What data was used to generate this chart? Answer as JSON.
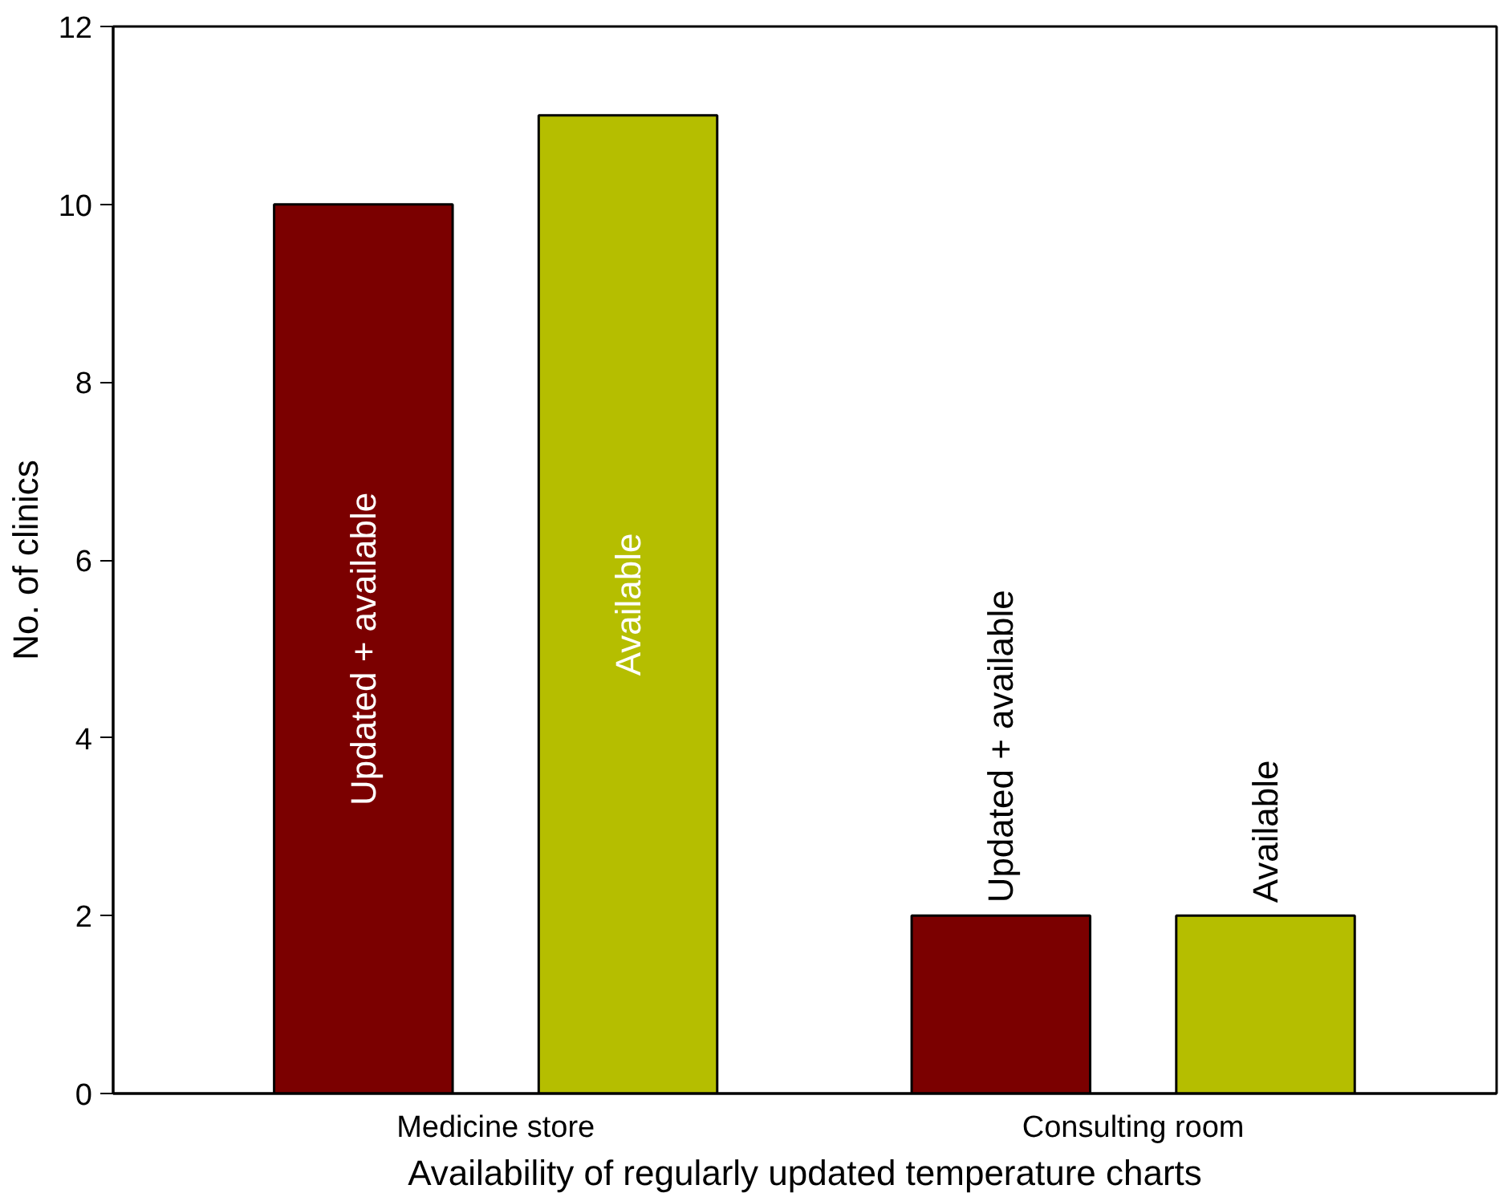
{
  "chart_data": {
    "type": "bar",
    "xlabel": "Availability of regularly updated temperature charts",
    "ylabel": "No. of clinics",
    "categories": [
      "Medicine store",
      "Consulting room"
    ],
    "series": [
      {
        "name": "Updated + available",
        "color": "#7b0000",
        "values": [
          10,
          2
        ]
      },
      {
        "name": "Available",
        "color": "#b5be00",
        "values": [
          11,
          2
        ]
      }
    ],
    "ylim": [
      0,
      12
    ],
    "yticks": [
      0,
      2,
      4,
      6,
      8,
      10,
      12
    ],
    "grid": false
  }
}
